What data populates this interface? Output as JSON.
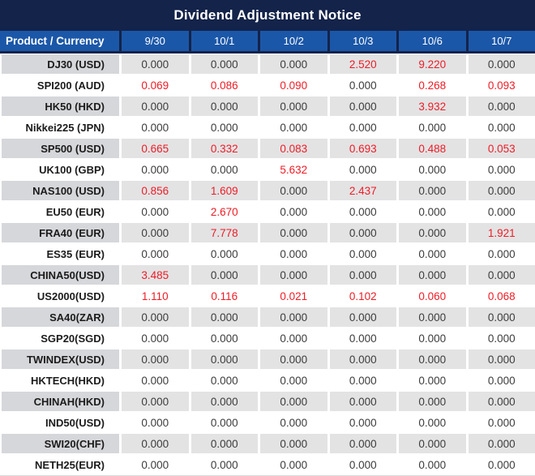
{
  "title": "Dividend Adjustment Notice",
  "colors": {
    "title_bg": "#13234a",
    "header_bg": "#1b57a8",
    "alt_row_label_bg": "#d6d7da",
    "alt_row_cell_bg": "#e3e3e4",
    "zero_text": "#3c3c3c",
    "nonzero_text": "#ee1c25",
    "header_text": "#ffffff"
  },
  "chart_data": {
    "type": "table",
    "title": "Dividend Adjustment Notice",
    "columns": [
      "Product / Currency",
      "9/30",
      "10/1",
      "10/2",
      "10/3",
      "10/6",
      "10/7"
    ],
    "rows": [
      {
        "product": "DJ30 (USD)",
        "values": [
          "0.000",
          "0.000",
          "0.000",
          "2.520",
          "9.220",
          "0.000"
        ]
      },
      {
        "product": "SPI200 (AUD)",
        "values": [
          "0.069",
          "0.086",
          "0.090",
          "0.000",
          "0.268",
          "0.093"
        ]
      },
      {
        "product": "HK50 (HKD)",
        "values": [
          "0.000",
          "0.000",
          "0.000",
          "0.000",
          "3.932",
          "0.000"
        ]
      },
      {
        "product": "Nikkei225 (JPN)",
        "values": [
          "0.000",
          "0.000",
          "0.000",
          "0.000",
          "0.000",
          "0.000"
        ]
      },
      {
        "product": "SP500 (USD)",
        "values": [
          "0.665",
          "0.332",
          "0.083",
          "0.693",
          "0.488",
          "0.053"
        ]
      },
      {
        "product": "UK100 (GBP)",
        "values": [
          "0.000",
          "0.000",
          "5.632",
          "0.000",
          "0.000",
          "0.000"
        ]
      },
      {
        "product": "NAS100 (USD)",
        "values": [
          "0.856",
          "1.609",
          "0.000",
          "2.437",
          "0.000",
          "0.000"
        ]
      },
      {
        "product": "EU50 (EUR)",
        "values": [
          "0.000",
          "2.670",
          "0.000",
          "0.000",
          "0.000",
          "0.000"
        ]
      },
      {
        "product": "FRA40 (EUR)",
        "values": [
          "0.000",
          "7.778",
          "0.000",
          "0.000",
          "0.000",
          "1.921"
        ]
      },
      {
        "product": "ES35 (EUR)",
        "values": [
          "0.000",
          "0.000",
          "0.000",
          "0.000",
          "0.000",
          "0.000"
        ]
      },
      {
        "product": "CHINA50(USD)",
        "values": [
          "3.485",
          "0.000",
          "0.000",
          "0.000",
          "0.000",
          "0.000"
        ]
      },
      {
        "product": "US2000(USD)",
        "values": [
          "1.110",
          "0.116",
          "0.021",
          "0.102",
          "0.060",
          "0.068"
        ]
      },
      {
        "product": "SA40(ZAR)",
        "values": [
          "0.000",
          "0.000",
          "0.000",
          "0.000",
          "0.000",
          "0.000"
        ]
      },
      {
        "product": "SGP20(SGD)",
        "values": [
          "0.000",
          "0.000",
          "0.000",
          "0.000",
          "0.000",
          "0.000"
        ]
      },
      {
        "product": "TWINDEX(USD)",
        "values": [
          "0.000",
          "0.000",
          "0.000",
          "0.000",
          "0.000",
          "0.000"
        ]
      },
      {
        "product": "HKTECH(HKD)",
        "values": [
          "0.000",
          "0.000",
          "0.000",
          "0.000",
          "0.000",
          "0.000"
        ]
      },
      {
        "product": "CHINAH(HKD)",
        "values": [
          "0.000",
          "0.000",
          "0.000",
          "0.000",
          "0.000",
          "0.000"
        ]
      },
      {
        "product": "IND50(USD)",
        "values": [
          "0.000",
          "0.000",
          "0.000",
          "0.000",
          "0.000",
          "0.000"
        ]
      },
      {
        "product": "SWI20(CHF)",
        "values": [
          "0.000",
          "0.000",
          "0.000",
          "0.000",
          "0.000",
          "0.000"
        ]
      },
      {
        "product": "NETH25(EUR)",
        "values": [
          "0.000",
          "0.000",
          "0.000",
          "0.000",
          "0.000",
          "0.000"
        ]
      }
    ]
  }
}
